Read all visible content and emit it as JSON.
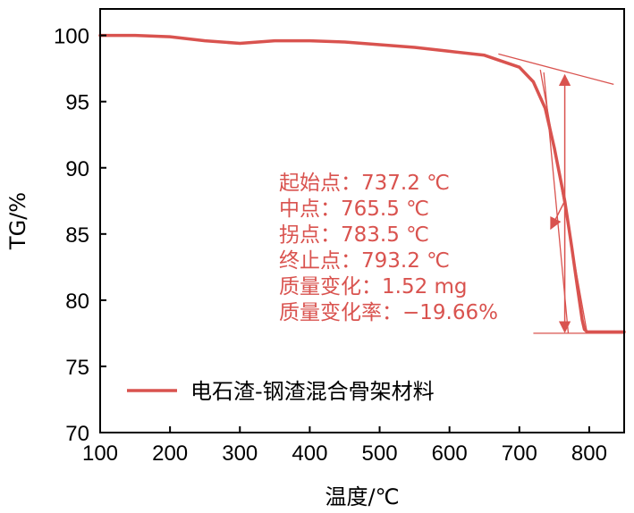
{
  "colors": {
    "series": "#d9534f",
    "axis": "#000000"
  },
  "chart_data": {
    "type": "line",
    "xlabel": "温度/℃",
    "ylabel": "TG/%",
    "xlim": [
      100,
      850
    ],
    "ylim": [
      70,
      102
    ],
    "x_ticks": [
      100,
      200,
      300,
      400,
      500,
      600,
      700,
      800
    ],
    "y_ticks": [
      70,
      75,
      80,
      85,
      90,
      95,
      100
    ],
    "grid": false,
    "legend_position": "bottom-left",
    "series": [
      {
        "name": "电石渣-钢渣混合骨架材料",
        "x": [
          100,
          150,
          200,
          250,
          300,
          350,
          400,
          450,
          500,
          550,
          600,
          650,
          700,
          720,
          737,
          750,
          765,
          775,
          783,
          790,
          793,
          797,
          800,
          850
        ],
        "y": [
          100.0,
          100.0,
          99.9,
          99.6,
          99.4,
          99.6,
          99.6,
          99.5,
          99.3,
          99.1,
          98.8,
          98.5,
          97.6,
          96.5,
          94.5,
          91.5,
          87.5,
          84.0,
          81.0,
          78.5,
          77.8,
          77.6,
          77.6,
          77.6
        ]
      }
    ],
    "tangent_lines": [
      {
        "x": [
          670,
          835
        ],
        "y": [
          98.6,
          96.3
        ]
      },
      {
        "x": [
          730,
          797
        ],
        "y": [
          97.4,
          77.5
        ]
      },
      {
        "x": [
          735,
          770
        ],
        "y": [
          97.2,
          77.5
        ]
      },
      {
        "x": [
          720,
          850
        ],
        "y": [
          77.5,
          77.5
        ]
      }
    ],
    "mass_change_arrow": {
      "x": 765,
      "y_top": 97.0,
      "y_bottom": 77.6
    },
    "pointer_arrow": {
      "from": [
        765,
        87.5
      ],
      "to": [
        745,
        85.4
      ]
    },
    "annotations": [
      "起始点：737.2 ℃",
      "中点：765.5 ℃",
      "拐点：783.5 ℃",
      "终止点：793.2 ℃",
      "质量变化：1.52 mg",
      "质量变化率：−19.66%"
    ]
  }
}
